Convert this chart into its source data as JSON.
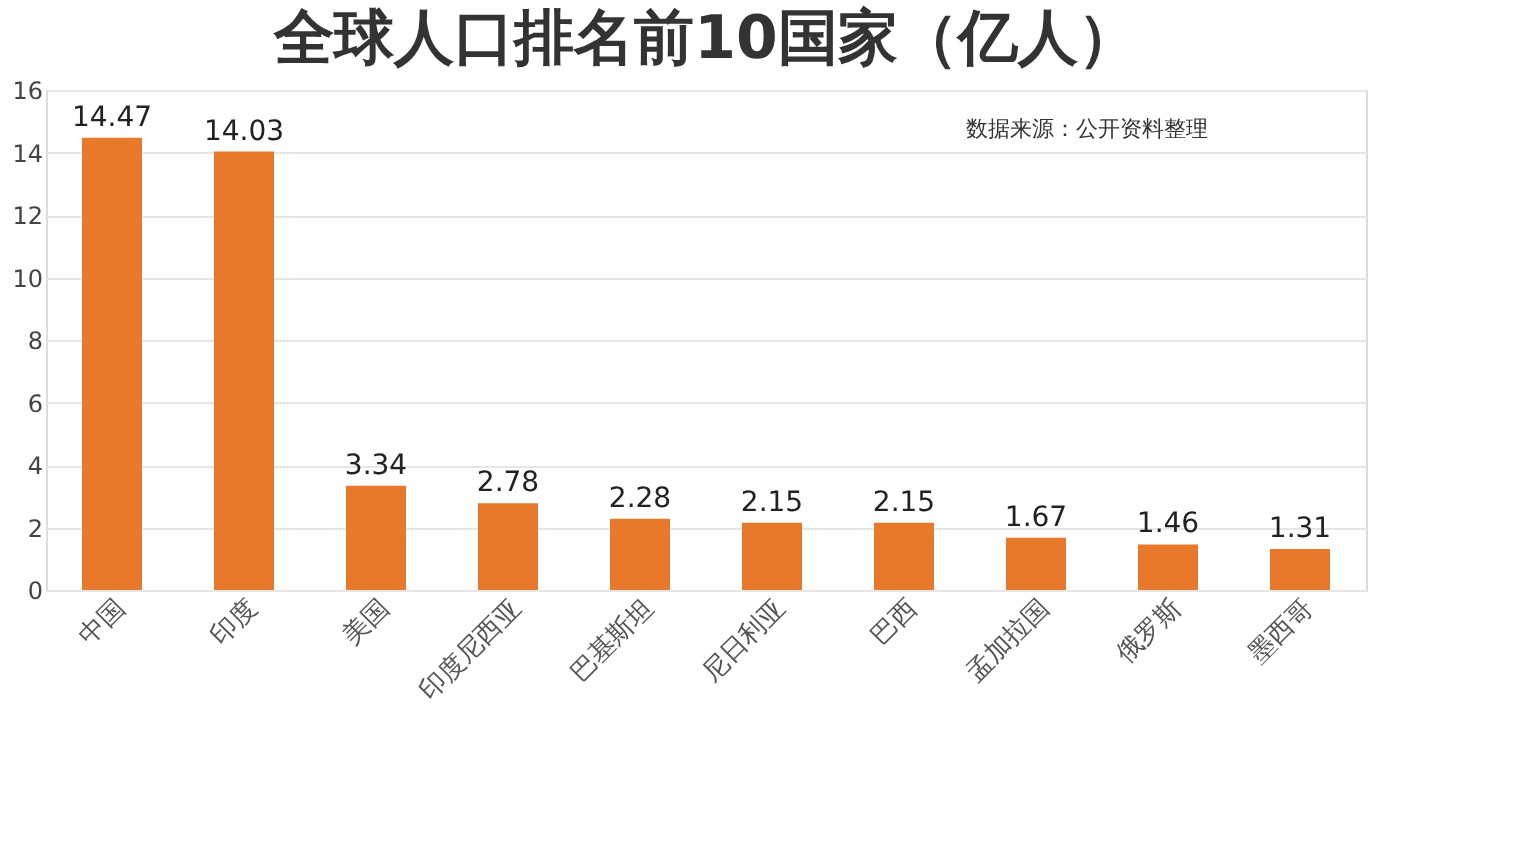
{
  "chart_data": {
    "type": "bar",
    "title": "全球人口排名前10国家（亿人）",
    "categories": [
      "中国",
      "印度",
      "美国",
      "印度尼西亚",
      "巴基斯坦",
      "尼日利亚",
      "巴西",
      "孟加拉国",
      "俄罗斯",
      "墨西哥"
    ],
    "values": [
      14.47,
      14.03,
      3.34,
      2.78,
      2.28,
      2.15,
      2.15,
      1.67,
      1.46,
      1.31
    ],
    "color": "#e8792a",
    "ylim": [
      0,
      16
    ],
    "yticks": [
      0,
      2,
      4,
      6,
      8,
      10,
      12,
      14,
      16
    ],
    "grid": "y",
    "data_labels": true,
    "annotations": [
      "数据来源：公开资料整理"
    ]
  }
}
